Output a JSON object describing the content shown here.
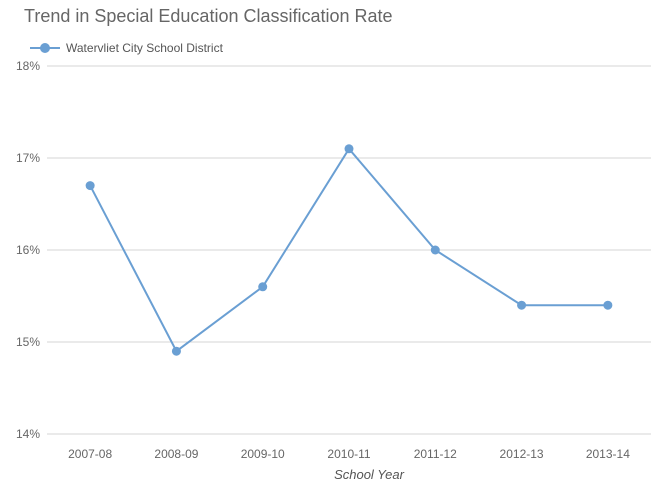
{
  "chart_data": {
    "type": "line",
    "title": "Trend in Special Education Classification Rate",
    "xlabel": "School Year",
    "ylabel": "",
    "categories": [
      "2007-08",
      "2008-09",
      "2009-10",
      "2010-11",
      "2011-12",
      "2012-13",
      "2013-14"
    ],
    "series": [
      {
        "name": "Watervliet City School District",
        "values": [
          16.7,
          14.9,
          15.6,
          17.1,
          16.0,
          15.4,
          15.4
        ],
        "color": "#6a9fd3"
      }
    ],
    "ylim": [
      14,
      18
    ],
    "yticks": [
      14,
      15,
      16,
      17,
      18
    ],
    "ytick_labels": [
      "14%",
      "15%",
      "16%",
      "17%",
      "18%"
    ],
    "grid": true,
    "legend": "top-left"
  }
}
